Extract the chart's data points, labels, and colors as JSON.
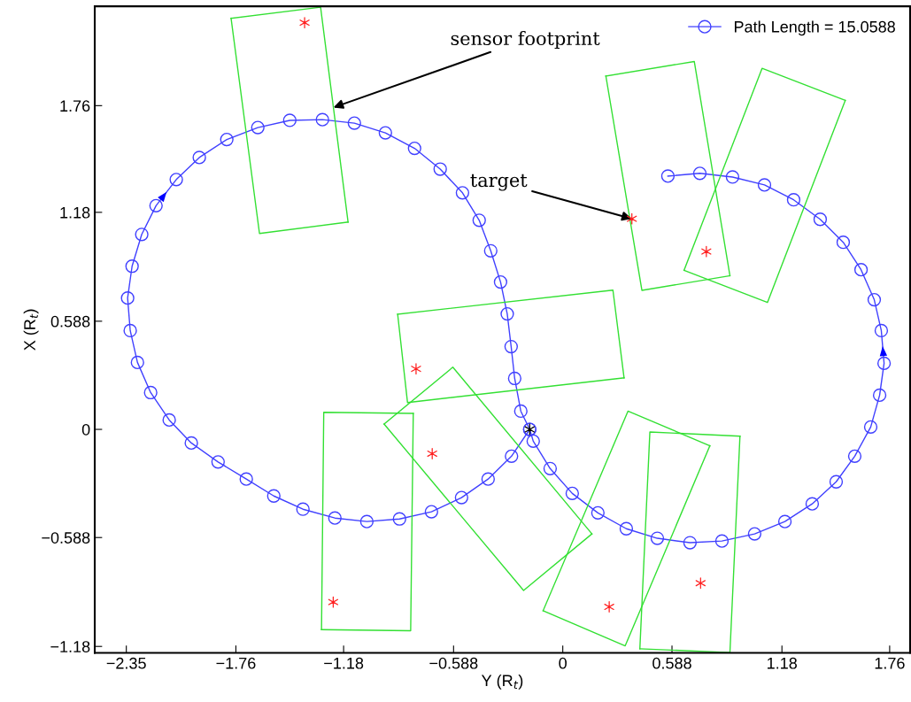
{
  "chart_data": {
    "type": "line",
    "xlabel": "Y (R$_{t}$)",
    "ylabel": "X (R$_{t}$)",
    "xlim": [
      -2.52,
      1.87
    ],
    "ylim": [
      -1.215,
      2.3
    ],
    "xticks": [
      {
        "value": -2.35,
        "label": "−2.35"
      },
      {
        "value": -1.76,
        "label": "−1.76"
      },
      {
        "value": -1.18,
        "label": "−1.18"
      },
      {
        "value": -0.588,
        "label": "−0.588"
      },
      0,
      0.588,
      1.18,
      1.76
    ],
    "yticks": [
      {
        "value": -1.18,
        "label": "−1.18"
      },
      {
        "value": -0.588,
        "label": "−0.588"
      },
      0,
      0.588,
      1.18,
      1.76
    ],
    "grid": false,
    "legend": "top right",
    "annotations": [
      {
        "text": "sensor footprint",
        "x": -1.235,
        "y": 1.75
      },
      {
        "text": "target",
        "x": 0.372,
        "y": 1.145
      }
    ],
    "series": [
      {
        "name": "Path Length = 15.0588",
        "color": "#4040ff",
        "marker": "circle",
        "line_style": "solid",
        "x": [
          -0.178,
          -0.276,
          -0.402,
          -0.545,
          -0.707,
          -0.879,
          -1.055,
          -1.227,
          -1.399,
          -1.556,
          -1.704,
          -1.856,
          -2.0,
          -2.119,
          -2.219,
          -2.29,
          -2.329,
          -2.343,
          -2.319,
          -2.267,
          -2.19,
          -2.081,
          -1.957,
          -1.809,
          -1.642,
          -1.47,
          -1.294,
          -1.122,
          -0.955,
          -0.798,
          -0.66,
          -0.54,
          -0.45,
          -0.388,
          -0.335,
          -0.299,
          -0.278,
          -0.259,
          -0.226,
          -0.178,
          -0.159,
          -0.068,
          0.051,
          0.189,
          0.342,
          0.509,
          0.685,
          0.857,
          1.033,
          1.196,
          1.343,
          1.472,
          1.572,
          1.658,
          1.706,
          1.73,
          1.715,
          1.677,
          1.606,
          1.51,
          1.386,
          1.243,
          1.086,
          0.914,
          0.738,
          0.566
        ],
        "values": [
          0.0,
          -0.146,
          -0.27,
          -0.371,
          -0.448,
          -0.487,
          -0.501,
          -0.482,
          -0.434,
          -0.362,
          -0.27,
          -0.177,
          -0.074,
          0.051,
          0.2,
          0.364,
          0.537,
          0.714,
          0.887,
          1.06,
          1.216,
          1.358,
          1.478,
          1.576,
          1.641,
          1.68,
          1.684,
          1.665,
          1.612,
          1.528,
          1.415,
          1.286,
          1.137,
          0.971,
          0.801,
          0.628,
          0.45,
          0.277,
          0.099,
          0.0,
          -0.064,
          -0.213,
          -0.348,
          -0.454,
          -0.54,
          -0.592,
          -0.616,
          -0.607,
          -0.568,
          -0.501,
          -0.405,
          -0.285,
          -0.146,
          0.013,
          0.186,
          0.359,
          0.537,
          0.705,
          0.868,
          1.017,
          1.142,
          1.248,
          1.329,
          1.372,
          1.392,
          1.377
        ]
      },
      {
        "color": "#33e033",
        "marker": "none",
        "line_style": "solid",
        "x": [
          -1.786,
          -1.304,
          -1.156
        ],
        "values": [
          2.235,
          2.295,
          1.127
        ]
      },
      {
        "color": "#33e033",
        "marker": "none",
        "line_style": "solid",
        "x": [
          -1.786,
          -1.633,
          -1.156
        ],
        "values": [
          2.235,
          1.065,
          1.127
        ]
      },
      {
        "color": "#33e033",
        "marker": "none",
        "line_style": "solid",
        "x": [
          -0.889,
          0.27,
          0.33
        ],
        "values": [
          0.626,
          0.757,
          0.28
        ]
      },
      {
        "color": "#33e033",
        "marker": "none",
        "line_style": "solid",
        "x": [
          -0.889,
          -0.836,
          0.33
        ],
        "values": [
          0.626,
          0.146,
          0.28
        ]
      },
      {
        "color": "#33e033",
        "marker": "none",
        "line_style": "solid",
        "x": [
          -1.299,
          -1.287,
          -0.805
        ],
        "values": [
          -1.089,
          0.093,
          0.087
        ]
      },
      {
        "color": "#33e033",
        "marker": "none",
        "line_style": "solid",
        "x": [
          -1.299,
          -0.819,
          -0.805
        ],
        "values": [
          -1.089,
          -1.095,
          0.087
        ]
      },
      {
        "color": "#33e033",
        "marker": "none",
        "line_style": "solid",
        "x": [
          -0.962,
          -0.592,
          0.157
        ],
        "values": [
          0.029,
          0.338,
          -0.568
        ]
      },
      {
        "color": "#33e033",
        "marker": "none",
        "line_style": "solid",
        "x": [
          -0.962,
          -0.211,
          0.157
        ],
        "values": [
          0.029,
          -0.876,
          -0.568
        ]
      },
      {
        "color": "#33e033",
        "marker": "none",
        "line_style": "solid",
        "x": [
          -0.106,
          0.351,
          0.792
        ],
        "values": [
          -0.986,
          0.099,
          -0.089
        ]
      },
      {
        "color": "#33e033",
        "marker": "none",
        "line_style": "solid",
        "x": [
          -0.106,
          0.336,
          0.792
        ],
        "values": [
          -0.986,
          -1.177,
          -0.089
        ]
      },
      {
        "color": "#33e033",
        "marker": "none",
        "line_style": "solid",
        "x": [
          0.415,
          0.469,
          0.954
        ],
        "values": [
          -1.193,
          -0.014,
          -0.037
        ]
      },
      {
        "color": "#33e033",
        "marker": "none",
        "line_style": "solid",
        "x": [
          0.415,
          0.9,
          0.954
        ],
        "values": [
          -1.193,
          -1.213,
          -0.037
        ]
      },
      {
        "color": "#33e033",
        "marker": "none",
        "line_style": "solid",
        "x": [
          0.232,
          0.708,
          0.9
        ],
        "values": [
          1.921,
          2.0,
          0.835
        ]
      },
      {
        "color": "#33e033",
        "marker": "none",
        "line_style": "solid",
        "x": [
          0.232,
          0.426,
          0.9
        ],
        "values": [
          1.921,
          0.756,
          0.835
        ]
      },
      {
        "color": "#33e033",
        "marker": "none",
        "line_style": "solid",
        "x": [
          0.653,
          1.073,
          1.521
        ],
        "values": [
          0.865,
          1.963,
          1.789
        ]
      },
      {
        "color": "#33e033",
        "marker": "none",
        "line_style": "solid",
        "x": [
          0.653,
          1.102,
          1.521
        ],
        "values": [
          0.865,
          0.69,
          1.789
        ]
      },
      {
        "type": "scatter",
        "color": "#ff2020",
        "marker": "cross",
        "x": [
          -1.39,
          -0.79,
          -0.703,
          -1.236,
          0.372,
          0.773,
          0.25,
          0.742
        ],
        "values": [
          2.211,
          0.329,
          -0.132,
          -0.939,
          1.145,
          0.967,
          -0.965,
          -0.836
        ]
      },
      {
        "type": "scatter",
        "color": "#000000",
        "marker": "cross",
        "x": [
          -0.178
        ],
        "values": [
          0.0
        ]
      }
    ]
  }
}
